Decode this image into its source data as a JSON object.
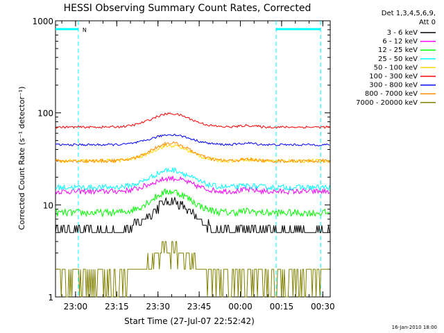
{
  "chart_data": {
    "type": "line",
    "title": "HESSI Observing Summary Count Rates, Corrected",
    "xlabel": "Start Time (27-Jul-07 22:52:42)",
    "ylabel": "Corrected Count Rate (s⁻¹ detector⁻¹)",
    "y_scale": "log",
    "ylim": [
      1,
      1000
    ],
    "xlim_minutes_after_start": [
      0,
      100
    ],
    "x_tick_labels": [
      "23:00",
      "23:15",
      "23:30",
      "23:45",
      "00:00",
      "00:15",
      "00:30"
    ],
    "x_tick_minutes": [
      7.3,
      22.3,
      37.3,
      52.3,
      67.3,
      82.3,
      97.3
    ],
    "y_tick_labels": [
      "1",
      "10",
      "100",
      "1000"
    ],
    "y_tick_values": [
      1,
      10,
      100,
      1000
    ],
    "legend_placement": "outside-right",
    "legend_header": [
      "Det 1,3,4,5,6,9,",
      "Att 0"
    ],
    "timestamp": "16-Jan-2010 18:00",
    "night_marker": "N",
    "night_intervals_minutes": [
      [
        0,
        8.3
      ],
      [
        80.3,
        96.5
      ]
    ],
    "series": [
      {
        "name": "3 - 6 keV",
        "color": "#000000",
        "base": 5.2,
        "peak": 11,
        "noise": 0.06
      },
      {
        "name": "6 - 12 keV",
        "color": "#ff00ff",
        "base": 14,
        "peak": 19.5,
        "noise": 0.03
      },
      {
        "name": "12 - 25 keV",
        "color": "#00ff00",
        "base": 8.2,
        "peak": 14,
        "noise": 0.04
      },
      {
        "name": "25 - 50 keV",
        "color": "#00ffff",
        "base": 15.5,
        "peak": 24,
        "noise": 0.03
      },
      {
        "name": "50 - 100 keV",
        "color": "#ffd700",
        "base": 30,
        "peak": 44,
        "noise": 0.02
      },
      {
        "name": "100 - 300 keV",
        "color": "#ff0000",
        "base": 70,
        "peak": 98,
        "noise": 0.012
      },
      {
        "name": "300 - 800 keV",
        "color": "#0000ff",
        "base": 45,
        "peak": 58,
        "noise": 0.012
      },
      {
        "name": "800 - 7000 keV",
        "color": "#ff8c00",
        "base": 30,
        "peak": 47,
        "noise": 0.018
      },
      {
        "name": "7000 - 20000 keV",
        "color": "#808000",
        "base": 1.6,
        "peak": 3.2,
        "noise": 0.12
      }
    ]
  }
}
